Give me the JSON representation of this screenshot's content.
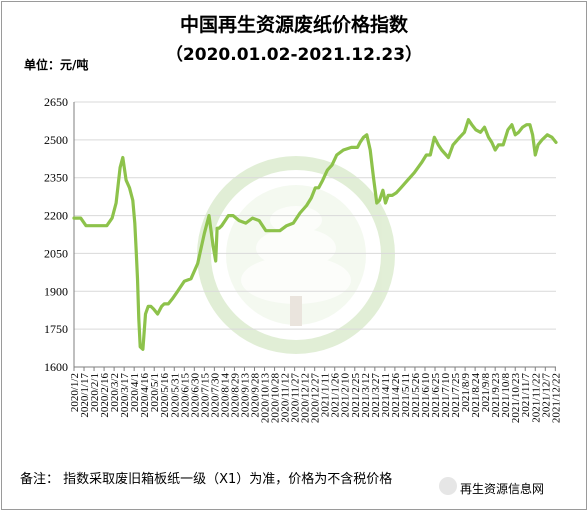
{
  "header": {
    "title": "中国再生资源废纸价格指数",
    "subtitle": "（2020.01.02-2021.12.23）",
    "unit": "单位：元/吨"
  },
  "footer": {
    "note": "备注：  指数采取废旧箱板纸一级（X1）为准，价格为不含税价格",
    "brand": "再生资源信息网"
  },
  "colors": {
    "line": "#8dc24b",
    "axis": "#7f7f7f",
    "grid": "#d9d9d9"
  },
  "chart_data": {
    "type": "line",
    "ylim": [
      1600,
      2650
    ],
    "yticks": [
      1600,
      1750,
      1900,
      2050,
      2200,
      2350,
      2500,
      2650
    ],
    "xlim": [
      "2020-01-02",
      "2021-12-23"
    ],
    "xtick_labels": [
      "2020/1/2",
      "2020/1/17",
      "2020/2/1",
      "2020/2/16",
      "2020/3/2",
      "2020/3/17",
      "2020/4/1",
      "2020/4/16",
      "2020/5/1",
      "2020/5/16",
      "2020/5/31",
      "2020/6/15",
      "2020/6/30",
      "2020/7/15",
      "2020/7/30",
      "2020/8/14",
      "2020/8/29",
      "2020/9/13",
      "2020/9/28",
      "2020/10/13",
      "2020/10/28",
      "2020/11/12",
      "2020/11/27",
      "2020/12/12",
      "2020/12/27",
      "2021/1/11",
      "2021/1/26",
      "2021/2/10",
      "2021/2/25",
      "2021/3/12",
      "2021/3/27",
      "2021/4/11",
      "2021/4/26",
      "2021/5/11",
      "2021/5/26",
      "2021/6/10",
      "2021/6/25",
      "2021/7/10",
      "2021/7/25",
      "2021/8/9",
      "2021/8/24",
      "2021/9/8",
      "2021/9/23",
      "2021/10/8",
      "2021/10/23",
      "2021/11/7",
      "2021/11/22",
      "2021/12/7",
      "2021/12/22"
    ],
    "series": [
      {
        "x": [
          "2020-01-02",
          "2020-01-12",
          "2020-01-20",
          "2020-02-10",
          "2020-02-20",
          "2020-02-28",
          "2020-03-05",
          "2020-03-11",
          "2020-03-15",
          "2020-03-20",
          "2020-03-25",
          "2020-03-30",
          "2020-04-02",
          "2020-04-04",
          "2020-04-06",
          "2020-04-08",
          "2020-04-10",
          "2020-04-14",
          "2020-04-18",
          "2020-04-22",
          "2020-04-26",
          "2020-04-30",
          "2020-05-06",
          "2020-05-12",
          "2020-05-16",
          "2020-05-22",
          "2020-05-28",
          "2020-06-05",
          "2020-06-15",
          "2020-06-25",
          "2020-07-05",
          "2020-07-15",
          "2020-07-22",
          "2020-07-28",
          "2020-08-01",
          "2020-08-03",
          "2020-08-06",
          "2020-08-10",
          "2020-08-15",
          "2020-08-20",
          "2020-08-27",
          "2020-09-05",
          "2020-09-15",
          "2020-09-25",
          "2020-10-05",
          "2020-10-15",
          "2020-10-25",
          "2020-11-05",
          "2020-11-15",
          "2020-11-25",
          "2020-12-05",
          "2020-12-15",
          "2020-12-22",
          "2020-12-28",
          "2021-01-02",
          "2021-01-08",
          "2021-01-15",
          "2021-01-22",
          "2021-01-29",
          "2021-02-08",
          "2021-02-20",
          "2021-03-01",
          "2021-03-05",
          "2021-03-10",
          "2021-03-15",
          "2021-03-20",
          "2021-03-25",
          "2021-03-30",
          "2021-04-03",
          "2021-04-08",
          "2021-04-12",
          "2021-04-16",
          "2021-04-22",
          "2021-04-28",
          "2021-05-05",
          "2021-05-15",
          "2021-05-25",
          "2021-06-05",
          "2021-06-12",
          "2021-06-18",
          "2021-06-24",
          "2021-06-30",
          "2021-07-05",
          "2021-07-15",
          "2021-07-22",
          "2021-08-01",
          "2021-08-08",
          "2021-08-14",
          "2021-08-19",
          "2021-08-25",
          "2021-09-01",
          "2021-09-07",
          "2021-09-13",
          "2021-09-18",
          "2021-09-23",
          "2021-09-28",
          "2021-10-05",
          "2021-10-12",
          "2021-10-18",
          "2021-10-23",
          "2021-10-28",
          "2021-11-03",
          "2021-11-09",
          "2021-11-14",
          "2021-11-18",
          "2021-11-22",
          "2021-11-26",
          "2021-12-02",
          "2021-12-10",
          "2021-12-17",
          "2021-12-23"
        ],
        "y": [
          2190,
          2190,
          2160,
          2160,
          2160,
          2190,
          2250,
          2390,
          2430,
          2340,
          2310,
          2260,
          2170,
          2060,
          1950,
          1790,
          1680,
          1670,
          1810,
          1840,
          1840,
          1830,
          1810,
          1840,
          1850,
          1850,
          1870,
          1900,
          1940,
          1950,
          2010,
          2130,
          2200,
          2080,
          2020,
          2150,
          2150,
          2160,
          2180,
          2200,
          2200,
          2180,
          2170,
          2190,
          2180,
          2140,
          2140,
          2140,
          2160,
          2170,
          2210,
          2240,
          2270,
          2310,
          2310,
          2340,
          2380,
          2400,
          2440,
          2460,
          2470,
          2470,
          2490,
          2510,
          2520,
          2460,
          2350,
          2250,
          2260,
          2300,
          2250,
          2280,
          2280,
          2290,
          2310,
          2340,
          2370,
          2410,
          2440,
          2440,
          2510,
          2480,
          2460,
          2430,
          2480,
          2510,
          2530,
          2580,
          2560,
          2540,
          2530,
          2550,
          2510,
          2490,
          2460,
          2480,
          2480,
          2540,
          2560,
          2520,
          2530,
          2550,
          2560,
          2560,
          2520,
          2440,
          2480,
          2500,
          2520,
          2510,
          2490
        ]
      }
    ]
  }
}
